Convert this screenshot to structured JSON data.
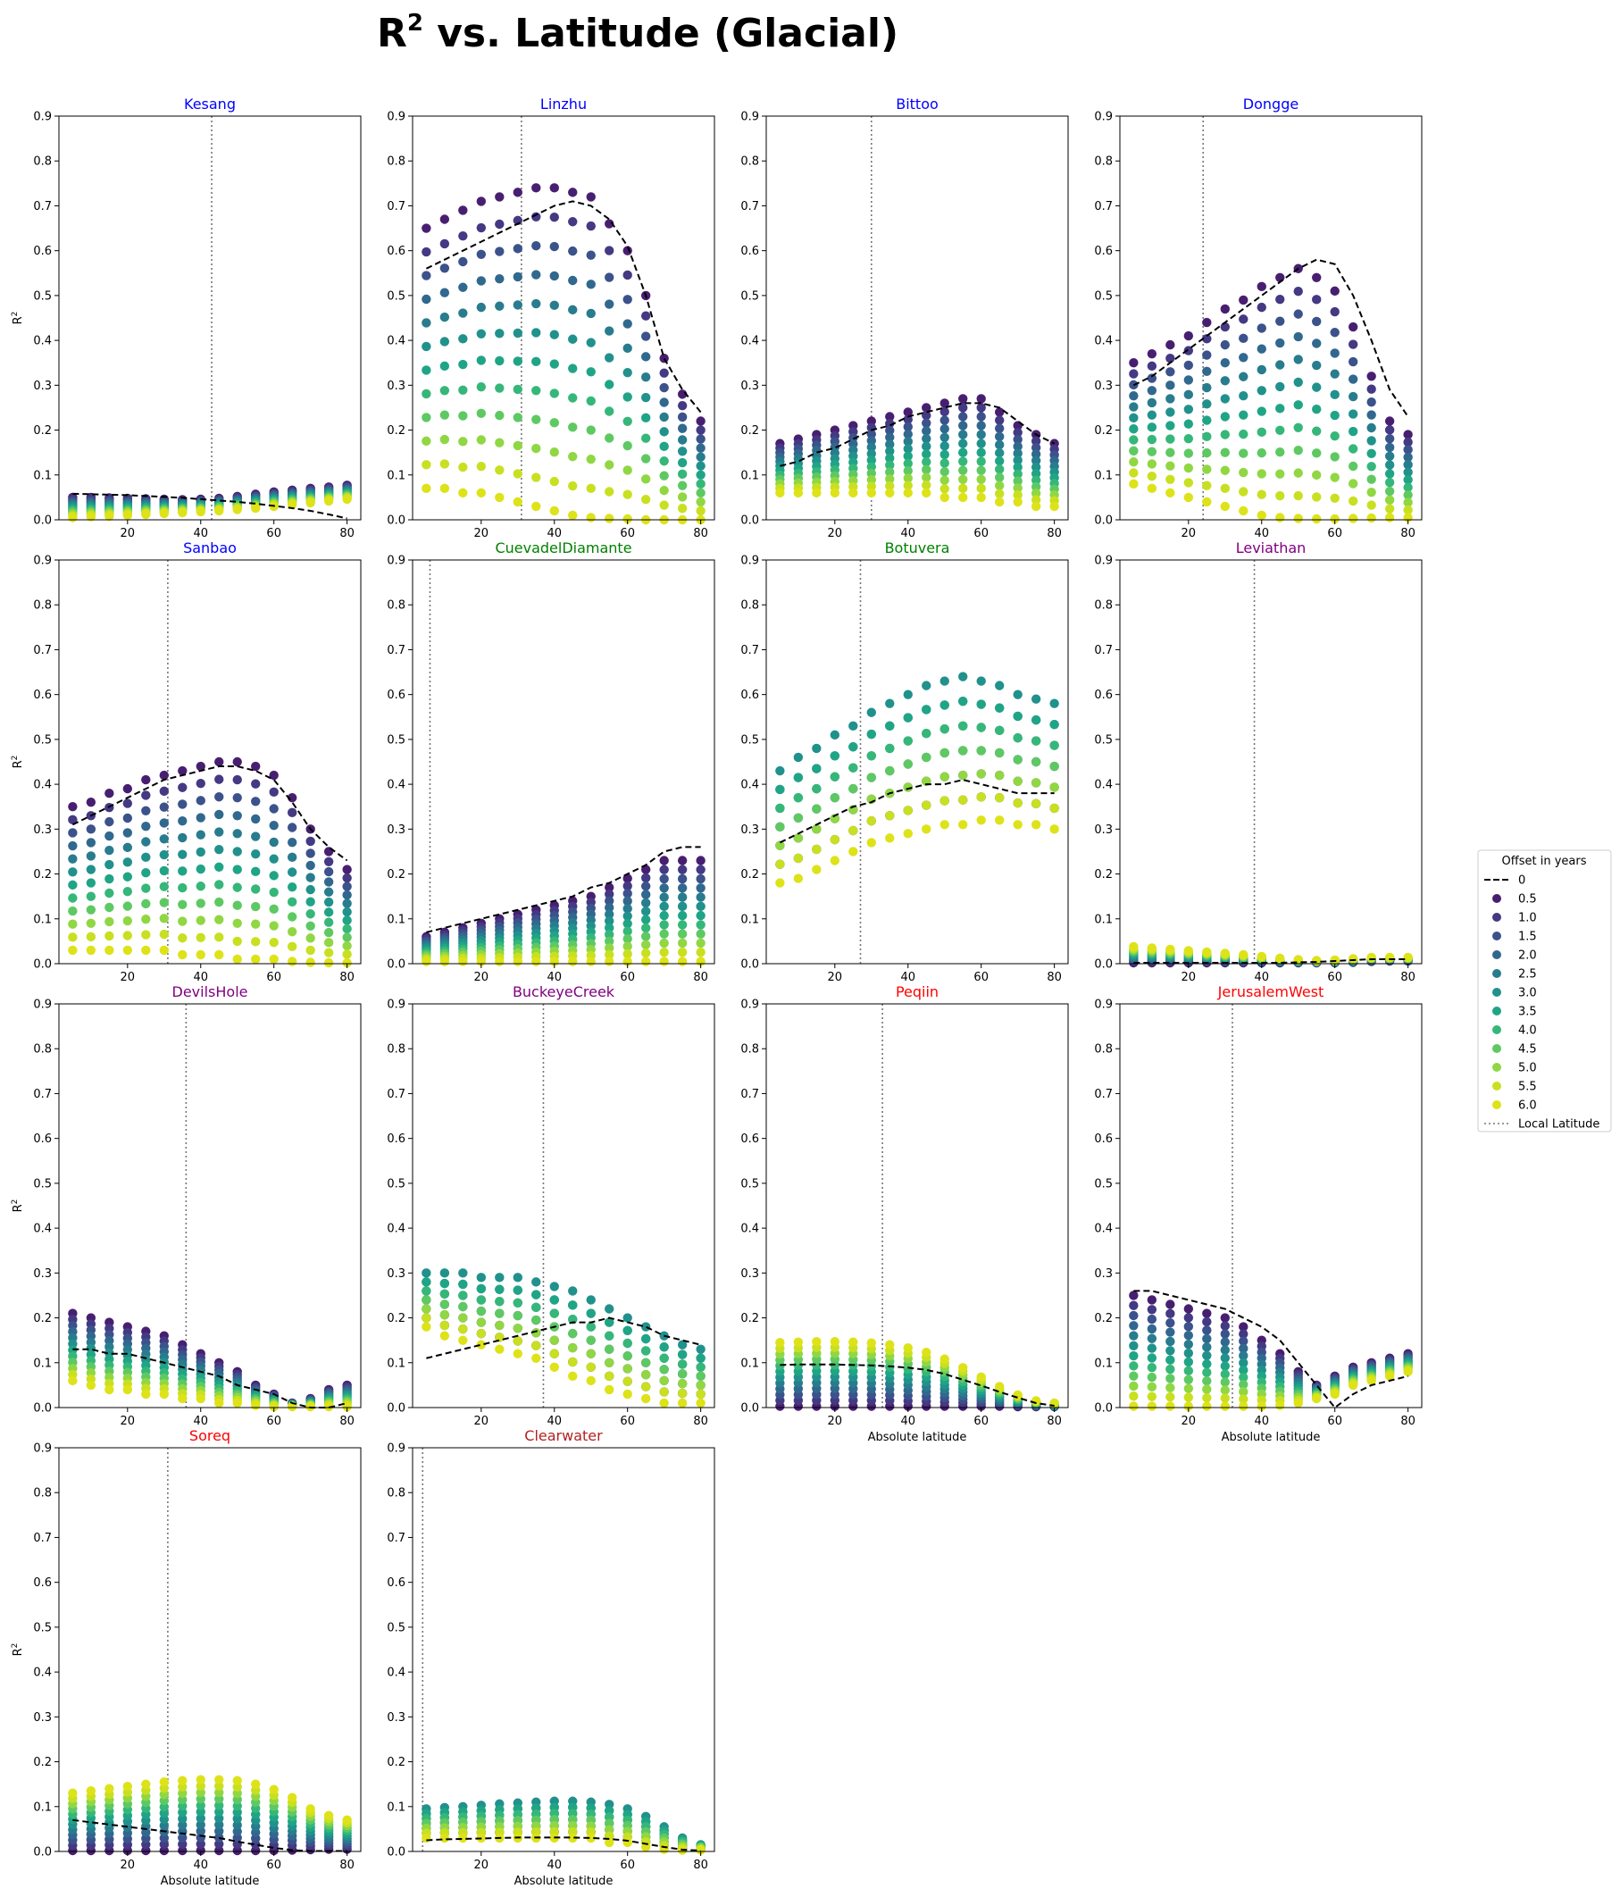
{
  "title": {
    "main": "R",
    "sup": "2",
    "rest": " vs. Latitude (Glacial)"
  },
  "legend": {
    "title": "Offset in years",
    "entries": [
      "0",
      "0.5",
      "1.0",
      "1.5",
      "2.0",
      "2.5",
      "3.0",
      "3.5",
      "4.0",
      "4.5",
      "5.0",
      "5.5",
      "6.0",
      "Local Latitude"
    ]
  },
  "offset_colors": [
    "#440154",
    "#481f70",
    "#443983",
    "#3b528b",
    "#31688e",
    "#287c8e",
    "#21918c",
    "#20a486",
    "#35b779",
    "#5ec962",
    "#90d743",
    "#c8e020",
    "#dde318"
  ],
  "chart_data": {
    "type": "scatter",
    "x": [
      5,
      10,
      15,
      20,
      25,
      30,
      35,
      40,
      45,
      50,
      55,
      60,
      65,
      70,
      75,
      80
    ],
    "xlabel": "Absolute latitude",
    "ylabel": "R",
    "ylabel_sup": "2",
    "ylim": [
      0,
      0.9
    ],
    "yticks": [
      "0.0",
      "0.1",
      "0.2",
      "0.3",
      "0.4",
      "0.5",
      "0.6",
      "0.7",
      "0.8",
      "0.9"
    ],
    "xticks": [
      "20",
      "40",
      "60",
      "80"
    ],
    "grid": false,
    "legend_position": "right",
    "panels": [
      {
        "name": "Kesang",
        "title_color": "#0000ff",
        "local_lat": 43,
        "lines": {
          "0": [
            0.058,
            0.057,
            0.056,
            0.055,
            0.053,
            0.051,
            0.049,
            0.046,
            0.043,
            0.04,
            0.036,
            0.031,
            0.026,
            0.02,
            0.012,
            0.003
          ]
        },
        "cloud": {
          "min": [
            0.005,
            0.007,
            0.008,
            0.01,
            0.012,
            0.014,
            0.016,
            0.018,
            0.02,
            0.023,
            0.026,
            0.03,
            0.034,
            0.038,
            0.042,
            0.046
          ],
          "max": [
            0.05,
            0.05,
            0.049,
            0.048,
            0.047,
            0.046,
            0.045,
            0.046,
            0.048,
            0.052,
            0.057,
            0.062,
            0.066,
            0.07,
            0.073,
            0.077
          ],
          "order": "down"
        }
      },
      {
        "name": "Linzhu",
        "title_color": "#0000ff",
        "local_lat": 31,
        "lines": {
          "0": [
            0.56,
            0.58,
            0.6,
            0.62,
            0.64,
            0.66,
            0.68,
            0.7,
            0.71,
            0.7,
            0.67,
            0.61,
            0.5,
            0.36,
            0.29,
            0.24
          ]
        },
        "cloud": {
          "min": [
            0.07,
            0.07,
            0.06,
            0.06,
            0.05,
            0.04,
            0.03,
            0.02,
            0.01,
            0.005,
            0.003,
            0.002,
            0.0,
            0.0,
            0.0,
            0.0
          ],
          "max": [
            0.65,
            0.67,
            0.69,
            0.71,
            0.72,
            0.73,
            0.74,
            0.74,
            0.73,
            0.72,
            0.66,
            0.6,
            0.5,
            0.36,
            0.28,
            0.22
          ],
          "order": "down"
        }
      },
      {
        "name": "Bittoo",
        "title_color": "#0000ff",
        "local_lat": 30,
        "lines": {
          "0": [
            0.12,
            0.13,
            0.15,
            0.16,
            0.18,
            0.2,
            0.21,
            0.23,
            0.24,
            0.25,
            0.26,
            0.26,
            0.25,
            0.22,
            0.19,
            0.17
          ]
        },
        "cloud": {
          "min": [
            0.06,
            0.06,
            0.06,
            0.06,
            0.06,
            0.06,
            0.06,
            0.06,
            0.06,
            0.05,
            0.05,
            0.05,
            0.04,
            0.04,
            0.03,
            0.03
          ],
          "max": [
            0.17,
            0.18,
            0.19,
            0.2,
            0.21,
            0.22,
            0.23,
            0.24,
            0.25,
            0.26,
            0.27,
            0.27,
            0.24,
            0.21,
            0.19,
            0.17
          ],
          "order": "down"
        }
      },
      {
        "name": "Dongge",
        "title_color": "#0000ff",
        "local_lat": 24,
        "lines": {
          "0": [
            0.3,
            0.32,
            0.35,
            0.38,
            0.41,
            0.44,
            0.47,
            0.5,
            0.53,
            0.56,
            0.58,
            0.57,
            0.5,
            0.4,
            0.29,
            0.23
          ]
        },
        "cloud": {
          "min": [
            0.08,
            0.07,
            0.06,
            0.05,
            0.04,
            0.03,
            0.02,
            0.01,
            0.005,
            0.003,
            0.002,
            0.002,
            0.003,
            0.004,
            0.005,
            0.005
          ],
          "max": [
            0.35,
            0.37,
            0.39,
            0.41,
            0.44,
            0.47,
            0.49,
            0.52,
            0.54,
            0.56,
            0.54,
            0.51,
            0.43,
            0.32,
            0.22,
            0.19
          ],
          "order": "down"
        }
      },
      {
        "name": "Sanbao",
        "title_color": "#0000ff",
        "local_lat": 31,
        "lines": {
          "0": [
            0.31,
            0.33,
            0.35,
            0.37,
            0.39,
            0.41,
            0.42,
            0.43,
            0.44,
            0.44,
            0.43,
            0.41,
            0.36,
            0.3,
            0.26,
            0.23
          ]
        },
        "cloud": {
          "min": [
            0.03,
            0.03,
            0.03,
            0.03,
            0.03,
            0.03,
            0.02,
            0.02,
            0.02,
            0.01,
            0.01,
            0.01,
            0.005,
            0.003,
            0.002,
            0.002
          ],
          "max": [
            0.35,
            0.36,
            0.38,
            0.39,
            0.41,
            0.42,
            0.43,
            0.44,
            0.45,
            0.45,
            0.44,
            0.42,
            0.37,
            0.3,
            0.25,
            0.21
          ],
          "order": "down"
        }
      },
      {
        "name": "CuevadelDiamante",
        "title_color": "#008000",
        "local_lat": 6,
        "lines": {
          "0": [
            0.07,
            0.08,
            0.09,
            0.1,
            0.11,
            0.12,
            0.13,
            0.14,
            0.15,
            0.17,
            0.18,
            0.2,
            0.22,
            0.25,
            0.26,
            0.26
          ]
        },
        "cloud": {
          "min": [
            0.005,
            0.005,
            0.005,
            0.005,
            0.005,
            0.005,
            0.005,
            0.005,
            0.005,
            0.005,
            0.005,
            0.005,
            0.005,
            0.005,
            0.005,
            0.005
          ],
          "max": [
            0.06,
            0.07,
            0.08,
            0.09,
            0.1,
            0.11,
            0.12,
            0.13,
            0.14,
            0.15,
            0.17,
            0.19,
            0.21,
            0.23,
            0.23,
            0.23
          ],
          "order": "down"
        }
      },
      {
        "name": "Botuvera",
        "title_color": "#008000",
        "local_lat": 27,
        "lines": {
          "0": [
            0.27,
            0.29,
            0.31,
            0.33,
            0.35,
            0.36,
            0.38,
            0.39,
            0.4,
            0.4,
            0.41,
            0.4,
            0.39,
            0.38,
            0.38,
            0.38
          ]
        },
        "cloud": {
          "min": [
            0.18,
            0.19,
            0.21,
            0.23,
            0.25,
            0.27,
            0.28,
            0.29,
            0.3,
            0.31,
            0.31,
            0.32,
            0.32,
            0.31,
            0.31,
            0.3
          ],
          "max": [
            0.43,
            0.46,
            0.48,
            0.51,
            0.53,
            0.56,
            0.58,
            0.6,
            0.62,
            0.63,
            0.64,
            0.63,
            0.62,
            0.6,
            0.59,
            0.58
          ],
          "order": "mid"
        }
      },
      {
        "name": "Leviathan",
        "title_color": "#800080",
        "local_lat": 38,
        "lines": {
          "0": [
            0.002,
            0.002,
            0.002,
            0.002,
            0.002,
            0.002,
            0.002,
            0.002,
            0.002,
            0.003,
            0.004,
            0.006,
            0.008,
            0.01,
            0.01,
            0.01
          ]
        },
        "cloud": {
          "min": [
            0.002,
            0.002,
            0.002,
            0.002,
            0.002,
            0.002,
            0.002,
            0.002,
            0.002,
            0.002,
            0.002,
            0.002,
            0.003,
            0.005,
            0.006,
            0.006
          ],
          "max": [
            0.038,
            0.035,
            0.032,
            0.029,
            0.026,
            0.023,
            0.02,
            0.016,
            0.012,
            0.009,
            0.007,
            0.008,
            0.011,
            0.014,
            0.014,
            0.014
          ],
          "order": "up"
        }
      },
      {
        "name": "DevilsHole",
        "title_color": "#800080",
        "local_lat": 36,
        "lines": {
          "0": [
            0.13,
            0.13,
            0.12,
            0.12,
            0.11,
            0.1,
            0.09,
            0.08,
            0.07,
            0.05,
            0.04,
            0.03,
            0.01,
            0.0,
            0.0,
            0.01
          ]
        },
        "cloud": {
          "min": [
            0.06,
            0.05,
            0.04,
            0.04,
            0.03,
            0.03,
            0.02,
            0.02,
            0.01,
            0.01,
            0.005,
            0.002,
            0.002,
            0.002,
            0.002,
            0.002
          ],
          "max": [
            0.21,
            0.2,
            0.19,
            0.18,
            0.17,
            0.16,
            0.14,
            0.12,
            0.1,
            0.08,
            0.05,
            0.03,
            0.01,
            0.02,
            0.04,
            0.05
          ],
          "order": "down"
        }
      },
      {
        "name": "BuckeyeCreek",
        "title_color": "#800080",
        "local_lat": 37,
        "lines": {
          "0": [
            0.11,
            0.12,
            0.13,
            0.14,
            0.15,
            0.16,
            0.17,
            0.18,
            0.19,
            0.19,
            0.2,
            0.19,
            0.18,
            0.16,
            0.15,
            0.14
          ]
        },
        "cloud": {
          "min": [
            0.18,
            0.16,
            0.15,
            0.14,
            0.13,
            0.12,
            0.11,
            0.09,
            0.07,
            0.06,
            0.04,
            0.03,
            0.02,
            0.01,
            0.01,
            0.01
          ],
          "max": [
            0.3,
            0.3,
            0.3,
            0.29,
            0.29,
            0.29,
            0.28,
            0.27,
            0.26,
            0.24,
            0.22,
            0.2,
            0.18,
            0.16,
            0.14,
            0.13
          ],
          "order": "mid"
        }
      },
      {
        "name": "Peqiin",
        "title_color": "#ff0000",
        "local_lat": 33,
        "lines": {
          "0": [
            0.095,
            0.096,
            0.096,
            0.096,
            0.095,
            0.094,
            0.092,
            0.089,
            0.084,
            0.075,
            0.062,
            0.049,
            0.035,
            0.022,
            0.01,
            0.004
          ]
        },
        "cloud": {
          "min": [
            0.003,
            0.003,
            0.003,
            0.003,
            0.003,
            0.003,
            0.003,
            0.003,
            0.003,
            0.003,
            0.003,
            0.003,
            0.003,
            0.002,
            0.002,
            0.002
          ],
          "max": [
            0.145,
            0.146,
            0.147,
            0.147,
            0.146,
            0.144,
            0.14,
            0.133,
            0.123,
            0.108,
            0.089,
            0.068,
            0.047,
            0.028,
            0.015,
            0.01
          ],
          "order": "up"
        }
      },
      {
        "name": "JerusalemWest",
        "title_color": "#ff0000",
        "local_lat": 32,
        "lines": {
          "0": [
            0.26,
            0.26,
            0.25,
            0.24,
            0.23,
            0.22,
            0.2,
            0.18,
            0.15,
            0.1,
            0.05,
            0.0,
            0.03,
            0.05,
            0.06,
            0.07
          ]
        },
        "cloud": {
          "min": [
            0.003,
            0.003,
            0.003,
            0.003,
            0.003,
            0.003,
            0.003,
            0.003,
            0.005,
            0.01,
            0.02,
            0.03,
            0.05,
            0.06,
            0.07,
            0.08
          ],
          "max": [
            0.25,
            0.24,
            0.23,
            0.22,
            0.21,
            0.2,
            0.18,
            0.15,
            0.12,
            0.08,
            0.05,
            0.07,
            0.09,
            0.1,
            0.11,
            0.12
          ],
          "order": "down"
        }
      },
      {
        "name": "Soreq",
        "title_color": "#ff0000",
        "local_lat": 31,
        "lines": {
          "0": [
            0.07,
            0.065,
            0.06,
            0.055,
            0.05,
            0.045,
            0.04,
            0.035,
            0.03,
            0.022,
            0.015,
            0.008,
            0.003,
            0.001,
            0.001,
            0.001
          ]
        },
        "cloud": {
          "min": [
            0.002,
            0.002,
            0.002,
            0.002,
            0.002,
            0.002,
            0.002,
            0.002,
            0.002,
            0.002,
            0.002,
            0.002,
            0.003,
            0.004,
            0.005,
            0.005
          ],
          "max": [
            0.13,
            0.135,
            0.14,
            0.145,
            0.15,
            0.155,
            0.158,
            0.16,
            0.16,
            0.158,
            0.15,
            0.138,
            0.12,
            0.095,
            0.08,
            0.07
          ],
          "order": "up"
        }
      },
      {
        "name": "Clearwater",
        "title_color": "#b22222",
        "local_lat": 4,
        "lines": {
          "0": [
            0.025,
            0.027,
            0.028,
            0.029,
            0.03,
            0.031,
            0.031,
            0.031,
            0.031,
            0.03,
            0.028,
            0.024,
            0.017,
            0.01,
            0.004,
            0.002
          ]
        },
        "cloud": {
          "min": [
            0.03,
            0.03,
            0.03,
            0.03,
            0.03,
            0.03,
            0.03,
            0.03,
            0.03,
            0.03,
            0.02,
            0.02,
            0.01,
            0.005,
            0.003,
            0.003
          ],
          "max": [
            0.095,
            0.098,
            0.1,
            0.103,
            0.106,
            0.108,
            0.11,
            0.112,
            0.112,
            0.11,
            0.105,
            0.095,
            0.078,
            0.055,
            0.03,
            0.015
          ],
          "order": "mid"
        }
      }
    ]
  }
}
